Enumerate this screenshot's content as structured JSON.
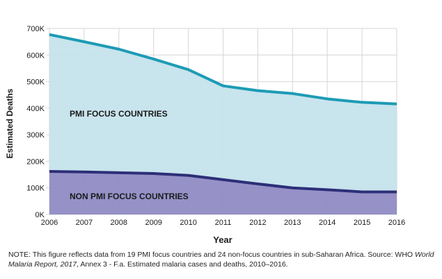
{
  "chart_data": {
    "type": "area",
    "x": [
      2006,
      2007,
      2008,
      2009,
      2010,
      2011,
      2012,
      2013,
      2014,
      2015,
      2016
    ],
    "xtick_labels": [
      "2006",
      "2007",
      "2008",
      "2009",
      "2010",
      "2011",
      "2012",
      "2013",
      "2014",
      "2015",
      "2016"
    ],
    "series": [
      {
        "name": "PMI FOCUS COUNTRIES",
        "values": [
          677000,
          650000,
          622000,
          585000,
          545000,
          484000,
          466000,
          455000,
          435000,
          422000,
          416000
        ],
        "line_color": "#1d9bb5",
        "fill_color": "#c5e3ec"
      },
      {
        "name": "NON PMI FOCUS COUNTRIES",
        "values": [
          162000,
          160000,
          157000,
          154000,
          147000,
          131000,
          115000,
          100000,
          93000,
          85000,
          85000
        ],
        "line_color": "#2d2f78",
        "fill_color": "#908bc4"
      }
    ],
    "xlabel": "Year",
    "ylabel": "Estimated Deaths",
    "ylim": [
      0,
      700000
    ],
    "yticks": [
      0,
      100000,
      200000,
      300000,
      400000,
      500000,
      600000,
      700000
    ],
    "ytick_labels": [
      "0K",
      "100K",
      "200K",
      "300K",
      "400K",
      "500K",
      "600K",
      "700K"
    ],
    "grid": true
  },
  "note": {
    "prefix": "NOTE: This figure reflects data from 19 PMI focus countries and 24 non-focus countries in sub-Saharan Africa. Source: WHO ",
    "source_title": "World Malaria Report, 2017",
    "suffix": ", Annex 3 - F.a. Estimated malaria cases and deaths, 2010–2016."
  }
}
